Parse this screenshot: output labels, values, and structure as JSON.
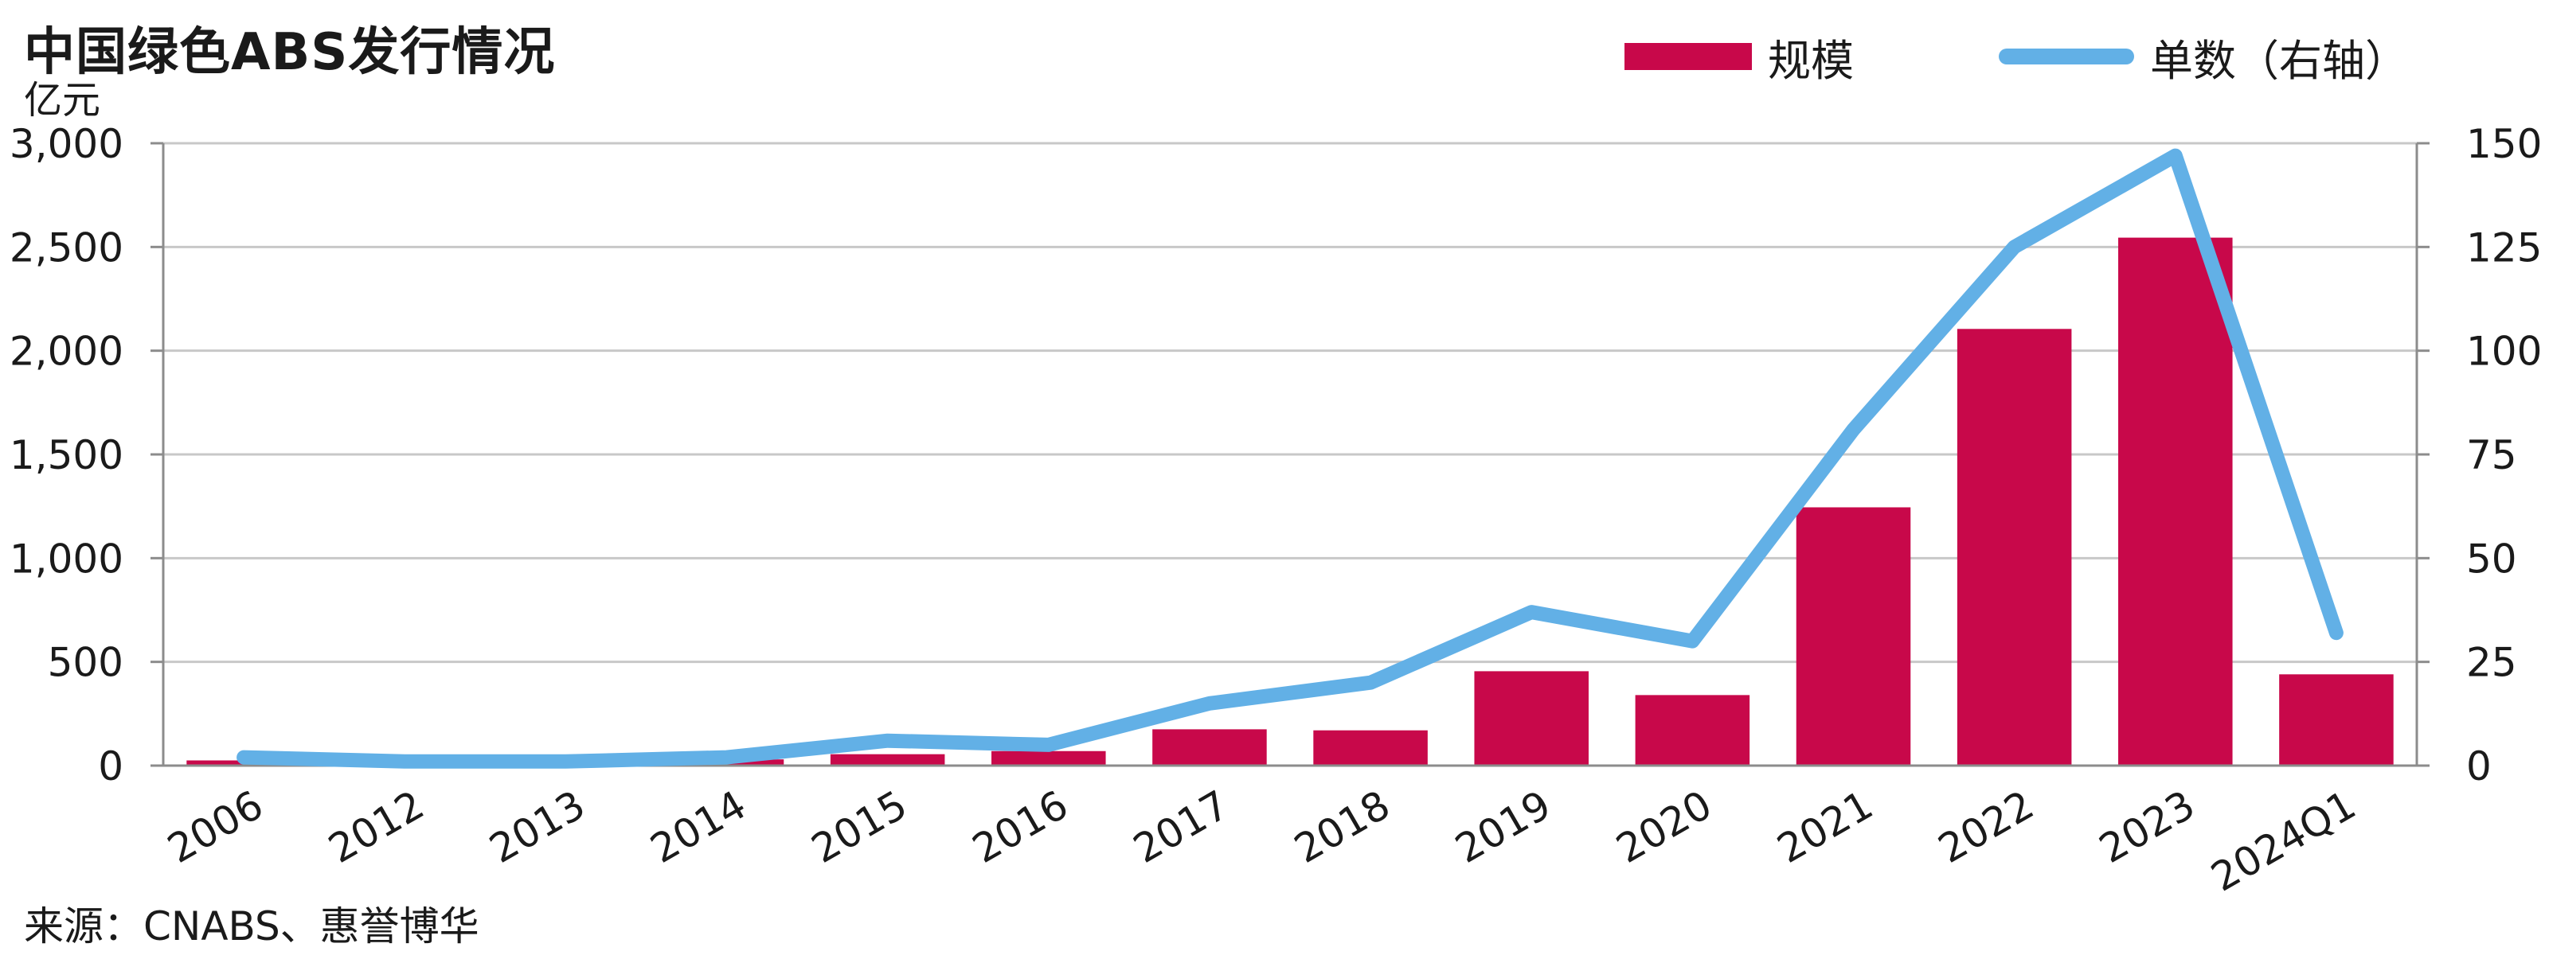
{
  "title": "中国绿色ABS发行情况",
  "unit_left": "亿元",
  "source": "来源：CNABS、惠誉博华",
  "colors": {
    "bar": "#c8084a",
    "line": "#62b0e6",
    "grid": "#c8c8c8",
    "axis": "#8c8c8c"
  },
  "chart_data": {
    "type": "bar",
    "categories": [
      "2006",
      "2012",
      "2013",
      "2014",
      "2015",
      "2016",
      "2017",
      "2018",
      "2019",
      "2020",
      "2021",
      "2022",
      "2023",
      "2024Q1"
    ],
    "series": [
      {
        "name": "规模",
        "type": "bar",
        "axis": "left",
        "values": [
          25,
          5,
          8,
          30,
          55,
          70,
          175,
          170,
          455,
          340,
          1245,
          2105,
          2545,
          440
        ]
      },
      {
        "name": "单数（右轴）",
        "type": "line",
        "axis": "right",
        "values": [
          2,
          1,
          1,
          2,
          6,
          5,
          15,
          20,
          37,
          30,
          81,
          125,
          147,
          32
        ]
      }
    ],
    "y_left": {
      "lim": [
        0,
        3000
      ],
      "ticks": [
        "0",
        "500",
        "1,000",
        "1,500",
        "2,000",
        "2,500",
        "3,000"
      ],
      "label": "亿元"
    },
    "y_right": {
      "lim": [
        0,
        150
      ],
      "ticks": [
        "0",
        "25",
        "50",
        "75",
        "100",
        "125",
        "150"
      ]
    },
    "grid": true,
    "legend_position": "top-right"
  }
}
